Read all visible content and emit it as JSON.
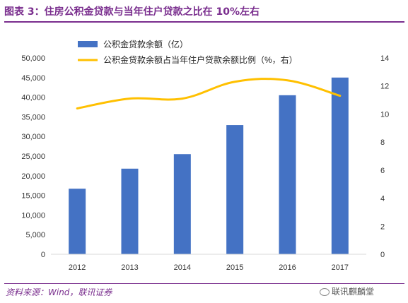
{
  "header": {
    "title": "图表 3：住房公积金贷款与当年住户贷款之比在 10%左右"
  },
  "footer": {
    "source": "资料来源：Wind，联讯证券",
    "watermark": "联讯麒麟堂",
    "watermark_icon": "wechat-icon"
  },
  "colors": {
    "bar": "#4472c4",
    "line": "#ffc000",
    "title": "#7a2e8e"
  },
  "chart_data": {
    "type": "bar",
    "categories": [
      "2012",
      "2013",
      "2014",
      "2015",
      "2016",
      "2017"
    ],
    "series": [
      {
        "name": "公积金贷款余额（亿）",
        "type": "bar",
        "axis": "left",
        "values": [
          16700,
          21800,
          25500,
          32900,
          40500,
          45000
        ]
      },
      {
        "name": "公积金贷款余额占当年住户贷款余额比例（%，右）",
        "type": "line",
        "axis": "right",
        "values": [
          10.4,
          11.1,
          11.1,
          12.3,
          12.4,
          11.3
        ]
      }
    ],
    "y_left": {
      "ylim": [
        0,
        50000
      ],
      "ticks": [
        "0",
        "5,000",
        "10,000",
        "15,000",
        "20,000",
        "25,000",
        "30,000",
        "35,000",
        "40,000",
        "45,000",
        "50,000"
      ]
    },
    "y_right": {
      "ylim": [
        0,
        14
      ],
      "ticks": [
        "0",
        "2",
        "4",
        "6",
        "8",
        "10",
        "12",
        "14"
      ]
    },
    "legend": "top-left",
    "grid": false
  }
}
